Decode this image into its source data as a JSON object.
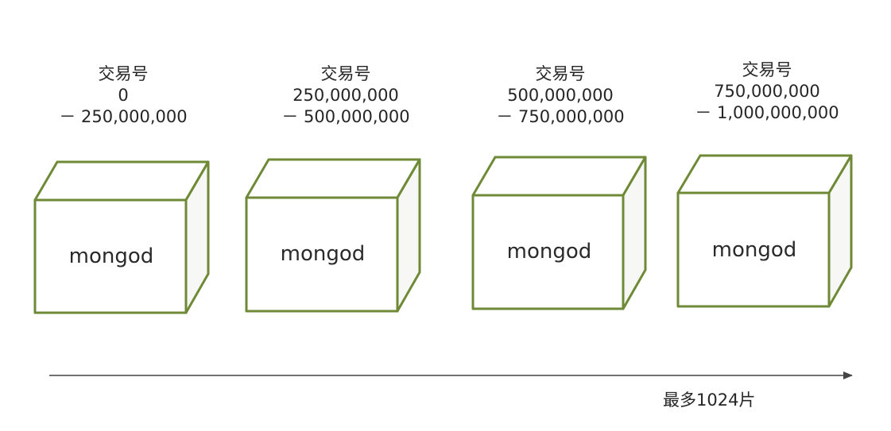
{
  "shards": [
    {
      "title": "交易号",
      "range_start": "0",
      "range_end": "－ 250,000,000",
      "node_label": "mongod"
    },
    {
      "title": "交易号",
      "range_start": "250,000,000",
      "range_end": "－ 500,000,000",
      "node_label": "mongod"
    },
    {
      "title": "交易号",
      "range_start": "500,000,000",
      "range_end": "－ 750,000,000",
      "node_label": "mongod"
    },
    {
      "title": "交易号",
      "range_start": "750,000,000",
      "range_end": "－ 1,000,000,000",
      "node_label": "mongod"
    }
  ],
  "axis": {
    "max_label": "最多1024片"
  },
  "colors": {
    "cube_stroke": "#6f8a36",
    "cube_fill": "#ffffff",
    "cube_side_fill": "#f7f7f5",
    "axis": "#444444"
  }
}
